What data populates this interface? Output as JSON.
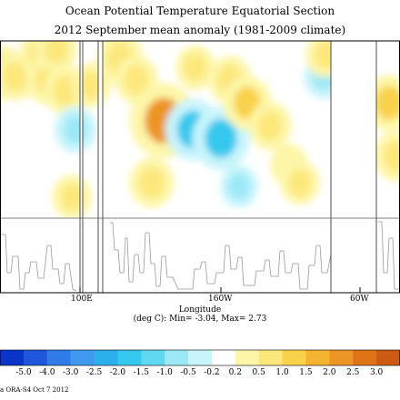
{
  "chart_data": {
    "type": "heatmap",
    "title": "Ocean Potential Temperature Equatorial Section",
    "subtitle": "2012 September mean anomaly (1981-2009 climate)",
    "xlabel": "Longitude",
    "x_ticks": [
      "100E",
      "160W",
      "60W"
    ],
    "stats_text": "(deg C): Min= -3.04, Max= 2.73",
    "value_range": {
      "min": -3.04,
      "max": 2.73
    },
    "colorbar": {
      "labels": [
        "-5.0",
        "-4.0",
        "-3.0",
        "-2.5",
        "-2.0",
        "-1.5",
        "-1.0",
        "-0.5",
        "-0.2",
        "0.2",
        "0.5",
        "1.0",
        "1.5",
        "2.0",
        "2.5",
        "3.0"
      ],
      "colors": [
        "#0a35c8",
        "#1f57dc",
        "#2f7ce8",
        "#3f9aef",
        "#2cb0ec",
        "#35c8ee",
        "#5fd8f1",
        "#9be8f7",
        "#c8f4fb",
        "#ffffff",
        "#fdf6a8",
        "#fce77a",
        "#f9d24c",
        "#f4b431",
        "#ec9424",
        "#de7416",
        "#cc5a10"
      ]
    },
    "anomaly_blobs": [
      {
        "lon": 2,
        "depth": 0.18,
        "value": 1.1
      },
      {
        "lon": 17,
        "depth": 0.2,
        "value": 0.8
      },
      {
        "lon": 44,
        "depth": 0.08,
        "value": 0.7
      },
      {
        "lon": 53,
        "depth": 0.22,
        "value": 0.9
      },
      {
        "lon": 62,
        "depth": 0.05,
        "value": 0.7
      },
      {
        "lon": 72,
        "depth": 0.28,
        "value": 0.8
      },
      {
        "lon": 83,
        "depth": 0.5,
        "value": -0.7
      },
      {
        "lon": 79,
        "depth": 0.88,
        "value": 0.6
      },
      {
        "lon": 100,
        "depth": 0.25,
        "value": 0.6
      },
      {
        "lon": 132,
        "depth": 0.1,
        "value": 1.0
      },
      {
        "lon": 150,
        "depth": 0.22,
        "value": 0.8
      },
      {
        "lon": 180,
        "depth": 0.45,
        "value": 2.2
      },
      {
        "lon": 167,
        "depth": 0.8,
        "value": 0.9
      },
      {
        "lon": 215,
        "depth": 0.15,
        "value": 0.6
      },
      {
        "lon": 212,
        "depth": 0.5,
        "value": -1.5
      },
      {
        "lon": 243,
        "depth": 0.55,
        "value": -1.6
      },
      {
        "lon": 253,
        "depth": 0.22,
        "value": 0.8
      },
      {
        "lon": 263,
        "depth": 0.82,
        "value": -0.5
      },
      {
        "lon": 272,
        "depth": 0.35,
        "value": 1.1
      },
      {
        "lon": 297,
        "depth": 0.48,
        "value": 0.8
      },
      {
        "lon": 318,
        "depth": 0.7,
        "value": 0.5
      },
      {
        "lon": 330,
        "depth": 0.8,
        "value": 0.6
      },
      {
        "lon": 356,
        "depth": 0.2,
        "value": -0.6
      },
      {
        "lon": 358,
        "depth": 0.08,
        "value": 0.6
      },
      {
        "lon": 428,
        "depth": 0.35,
        "value": 1.2
      },
      {
        "lon": 436,
        "depth": 0.65,
        "value": 0.9
      }
    ]
  },
  "footer": "a ORA-S4 Oct 7 2012"
}
